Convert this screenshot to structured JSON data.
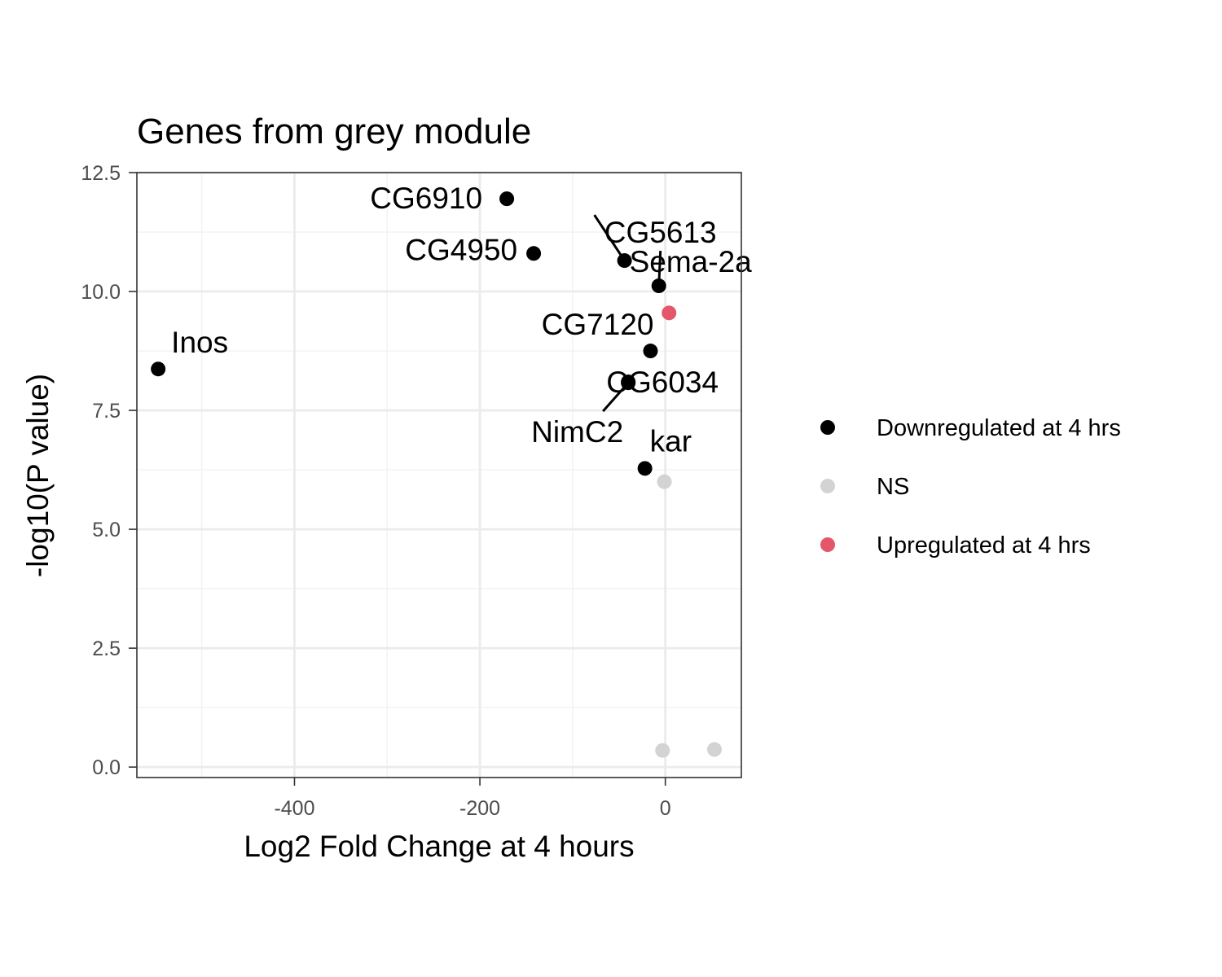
{
  "chart_data": {
    "type": "scatter",
    "title": "Genes from grey module",
    "xlabel": "Log2 Fold Change at 4 hours",
    "ylabel": "-log10(P value)",
    "xlim": [
      -570,
      82
    ],
    "ylim": [
      -0.22,
      12.5
    ],
    "x_ticks": [
      -400,
      -200,
      0
    ],
    "x_tick_labels": [
      "-400",
      "-200",
      "0"
    ],
    "y_ticks": [
      0,
      2.5,
      5,
      7.5,
      10,
      12.5
    ],
    "y_tick_labels": [
      "0.0",
      "2.5",
      "5.0",
      "7.5",
      "10.0",
      "12.5"
    ],
    "grid": true,
    "legend_position": "right",
    "categories": [
      {
        "name": "Downregulated at 4 hrs",
        "color": "#000000"
      },
      {
        "name": "NS",
        "color": "#d3d3d3"
      },
      {
        "name": "Upregulated at 4 hrs",
        "color": "#e5566a"
      }
    ],
    "points": [
      {
        "gene": "Inos",
        "x": -547,
        "y": 8.37,
        "category": "Downregulated at 4 hrs"
      },
      {
        "gene": "CG6910",
        "x": -171,
        "y": 11.95,
        "category": "Downregulated at 4 hrs"
      },
      {
        "gene": "CG4950",
        "x": -142,
        "y": 10.8,
        "category": "Downregulated at 4 hrs"
      },
      {
        "gene": "Sema-2a",
        "x": -44,
        "y": 10.65,
        "category": "Downregulated at 4 hrs"
      },
      {
        "gene": "CG5613",
        "x": -7,
        "y": 10.12,
        "category": "Downregulated at 4 hrs"
      },
      {
        "gene": "CG7120",
        "x": -16,
        "y": 8.75,
        "category": "Downregulated at 4 hrs"
      },
      {
        "gene": "CG6034",
        "x": -40,
        "y": 8.1,
        "category": "Downregulated at 4 hrs"
      },
      {
        "gene": "NimC2",
        "x": -40,
        "y": 8.08,
        "category": "Downregulated at 4 hrs"
      },
      {
        "gene": "kar",
        "x": -22,
        "y": 6.28,
        "category": "Downregulated at 4 hrs"
      },
      {
        "gene": "",
        "x": 4,
        "y": 9.55,
        "category": "Upregulated at 4 hrs"
      },
      {
        "gene": "",
        "x": -1,
        "y": 6.0,
        "category": "NS"
      },
      {
        "gene": "",
        "x": -3,
        "y": 0.35,
        "category": "NS"
      },
      {
        "gene": "",
        "x": 53,
        "y": 0.37,
        "category": "NS"
      }
    ],
    "labels": [
      {
        "text": "Inos",
        "gene": "Inos"
      },
      {
        "text": "CG6910",
        "gene": "CG6910"
      },
      {
        "text": "Sema-2a",
        "gene": "Sema-2a"
      },
      {
        "text": "CG4950",
        "gene": "CG4950"
      },
      {
        "text": "CG5613",
        "gene": "CG5613"
      },
      {
        "text": "CG7120",
        "gene": "CG7120"
      },
      {
        "text": "CG6034",
        "gene": "CG6034"
      },
      {
        "text": "NimC2",
        "gene": "NimC2"
      },
      {
        "text": "kar",
        "gene": "kar"
      }
    ]
  }
}
